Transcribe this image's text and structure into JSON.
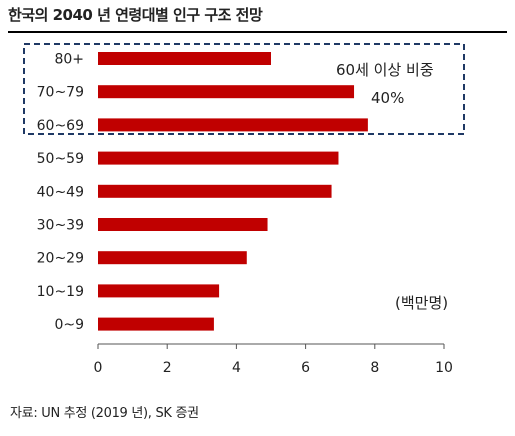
{
  "title": "한국의 2040 년 연령대별 인구 구조 전망",
  "source": "자료: UN 추정 (2019 년), SK 증권",
  "chart_data": {
    "type": "bar",
    "orientation": "horizontal",
    "categories": [
      "80+",
      "70~79",
      "60~69",
      "50~59",
      "40~49",
      "30~39",
      "20~29",
      "10~19",
      "0~9"
    ],
    "values": [
      5.0,
      7.4,
      7.8,
      6.95,
      6.75,
      4.9,
      4.3,
      3.5,
      3.35
    ],
    "xlim": [
      0,
      10
    ],
    "xticks": [
      0,
      2,
      4,
      6,
      8,
      10
    ],
    "unit_label": "(백만명)",
    "highlight_label": "60세 이상 비중",
    "highlight_value": "40%",
    "highlight_categories": [
      "80+",
      "70~79",
      "60~69"
    ],
    "bar_color": "#c00000",
    "highlight_border_color": "#1f3864",
    "grid": false
  }
}
